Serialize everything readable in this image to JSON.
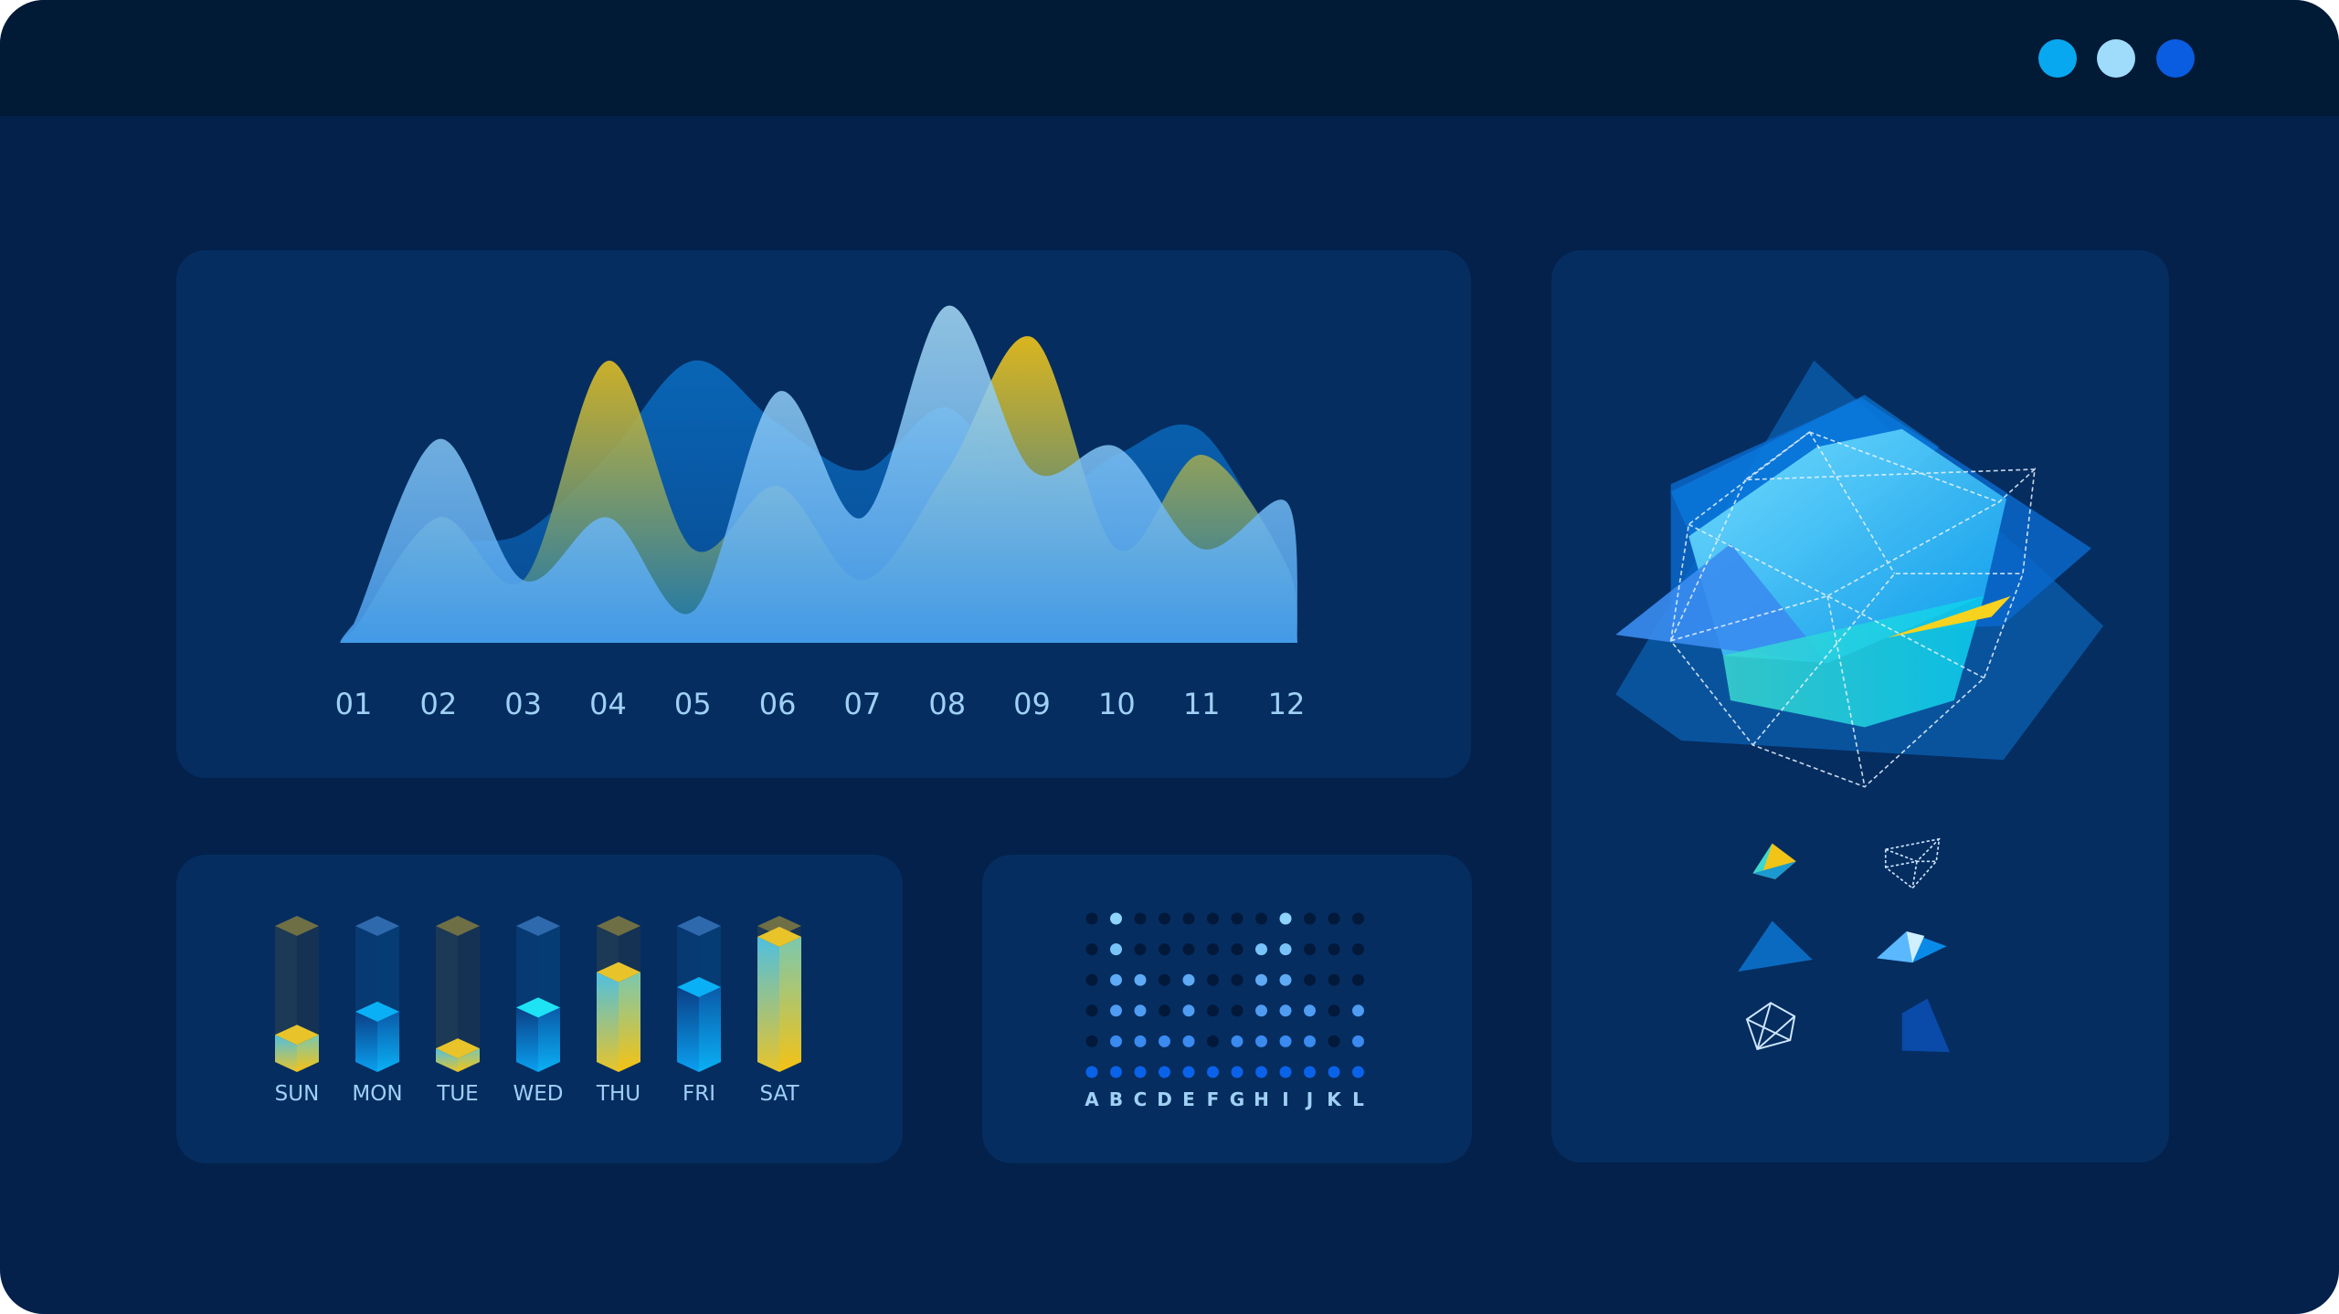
{
  "window": {
    "controls": [
      {
        "name": "window-dot-1",
        "color": "#08a8f0"
      },
      {
        "name": "window-dot-2",
        "color": "#9fdcfb"
      },
      {
        "name": "window-dot-3",
        "color": "#0a5ce0"
      }
    ]
  },
  "chart_data": [
    {
      "type": "area",
      "categories": [
        "01",
        "02",
        "03",
        "04",
        "05",
        "06",
        "07",
        "08",
        "09",
        "10",
        "11",
        "12"
      ],
      "series": [
        {
          "values": [
            10,
            60,
            70,
            120,
            180,
            140,
            110,
            150,
            90,
            120,
            135,
            40
          ],
          "color": "#0a6fc4"
        },
        {
          "values": [
            8,
            80,
            40,
            180,
            60,
            100,
            40,
            110,
            195,
            60,
            120,
            50
          ],
          "color": "#f2c418"
        },
        {
          "values": [
            12,
            130,
            40,
            80,
            20,
            160,
            80,
            215,
            110,
            125,
            60,
            90
          ],
          "color": "#8fd0f5"
        }
      ],
      "grid": false,
      "legend": "none"
    },
    {
      "type": "bar",
      "categories": [
        "SUN",
        "MON",
        "TUE",
        "WED",
        "THU",
        "FRI",
        "SAT"
      ],
      "values": [
        0.2,
        0.37,
        0.1,
        0.4,
        0.66,
        0.55,
        0.92
      ],
      "colors": [
        "yellow",
        "blue",
        "yellow",
        "blue",
        "yellow",
        "blue",
        "yellow"
      ],
      "ylim": [
        0,
        1
      ]
    },
    {
      "type": "heatmap",
      "categories": [
        "A",
        "B",
        "C",
        "D",
        "E",
        "F",
        "G",
        "H",
        "I",
        "J",
        "K",
        "L"
      ],
      "values": [
        1,
        6,
        4,
        2,
        4,
        1,
        2,
        5,
        6,
        3,
        1,
        3
      ],
      "ylim": [
        0,
        6
      ]
    }
  ],
  "colors": {
    "yellow": "#f2c418",
    "blue": "#0aa0f0",
    "cyan": "#1de3f5",
    "dot_off": "#03193a"
  }
}
